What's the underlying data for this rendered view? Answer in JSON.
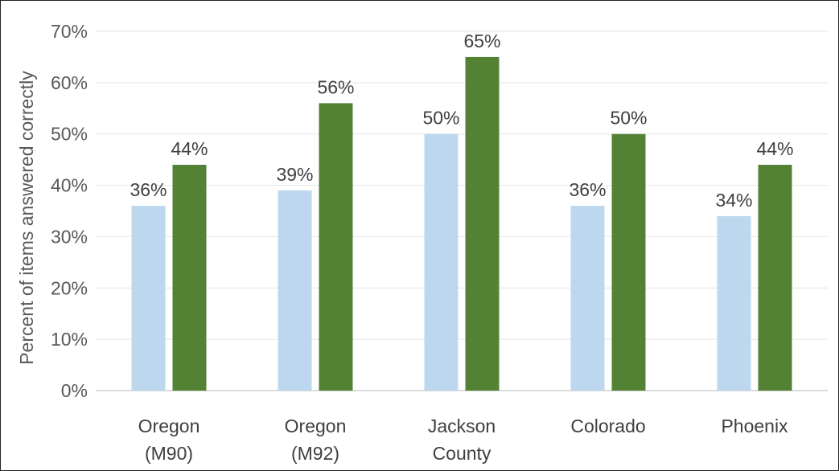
{
  "chart_data": {
    "type": "bar",
    "title": "",
    "xlabel": "",
    "ylabel": "Percent of items answered correctly",
    "categories": [
      [
        "Oregon",
        "(M90)"
      ],
      [
        "Oregon",
        "(M92)"
      ],
      [
        "Jackson",
        "County"
      ],
      [
        "Colorado"
      ],
      [
        "Phoenix"
      ]
    ],
    "series": [
      {
        "values": [
          36,
          39,
          50,
          36,
          34
        ],
        "color": "#bdd7ee"
      },
      {
        "values": [
          44,
          56,
          65,
          50,
          44
        ],
        "color": "#548235"
      }
    ],
    "data_labels": [
      [
        "36%",
        "39%",
        "50%",
        "36%",
        "34%"
      ],
      [
        "44%",
        "56%",
        "65%",
        "50%",
        "44%"
      ]
    ],
    "y_ticks": [
      "0%",
      "10%",
      "20%",
      "30%",
      "40%",
      "50%",
      "60%",
      "70%"
    ],
    "ylim": [
      0,
      70
    ],
    "grid": true,
    "legend": "none"
  }
}
